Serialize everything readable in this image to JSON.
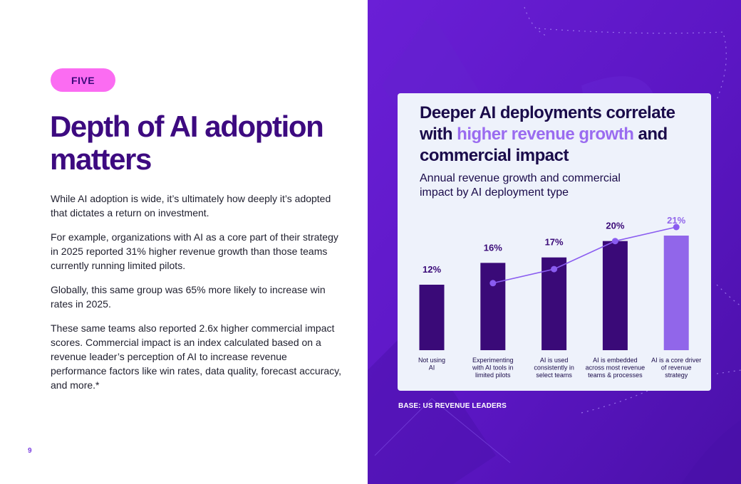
{
  "page": {
    "badge": "FIVE",
    "headline": "Depth of AI adoption matters",
    "paragraphs": [
      "While AI adoption is wide, it’s ultimately how deeply it’s adopted that dictates a return on investment.",
      "For example, organizations with AI as a core part of their strategy in 2025 reported 31% higher revenue growth than those teams currently running limited pilots.",
      "Globally, this same group was 65% more likely to increase win rates in 2025.",
      "These same teams also reported 2.6x higher commercial impact scores. Commercial impact is an index calculated based on a revenue leader’s perception of AI to increase revenue performance factors like win rates, data quality, forecast accuracy, and more.*"
    ],
    "page_number": "9",
    "base_note": "BASE: US REVENUE LEADERS"
  },
  "card": {
    "title_part1": "Deeper AI deployments correlate with ",
    "title_highlight": "higher revenue growth",
    "title_part2": " and commercial impact",
    "subtitle": "Annual revenue growth and commercial impact by AI deployment type"
  },
  "colors": {
    "badge": "#fb6cf2",
    "headline": "#3d0a80",
    "panel": "#5a16c2",
    "bar_dark": "#3a0a78",
    "bar_highlight": "#9166ea",
    "line": "#8a5cf0",
    "title_highlight": "#9a6cf0"
  },
  "chart_data": {
    "type": "bar",
    "categories": [
      [
        "Not using",
        "AI"
      ],
      [
        "Experimenting",
        "with AI tools in",
        "limited pilots"
      ],
      [
        "AI is used",
        "consistently in",
        "select teams"
      ],
      [
        "AI is embedded",
        "across most revenue",
        "teams & processes"
      ],
      [
        "AI is a core driver",
        "of revenue",
        "strategy"
      ]
    ],
    "series": [
      {
        "values": [
          12,
          16,
          17,
          20,
          21
        ],
        "labels": [
          "12%",
          "16%",
          "17%",
          "20%",
          "21%"
        ],
        "highlight_index": 4
      },
      {
        "type": "line",
        "values": [
          null,
          1.0,
          1.4,
          2.2,
          2.6
        ]
      }
    ],
    "ylim": [
      0,
      21
    ],
    "line_ylim": [
      0,
      2.6
    ],
    "grid": false
  }
}
